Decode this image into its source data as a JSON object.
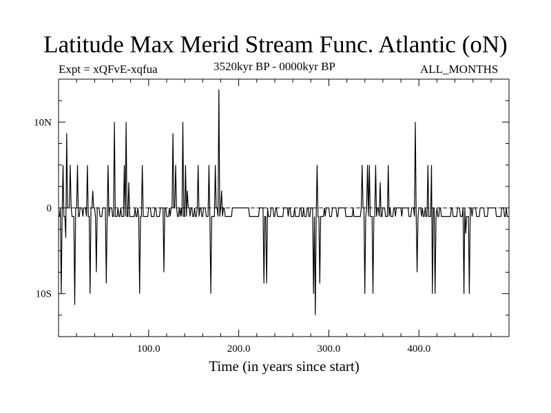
{
  "chart_data": {
    "type": "line",
    "title": "Latitude Max Merid Stream Func. Atlantic (oN)",
    "experiment": "Expt = xQFvE-xqfua",
    "period": "3520kyr BP - 0000kyr BP",
    "season": "ALL_MONTHS",
    "xlabel": "Time (in years since start)",
    "ylabel": "",
    "xlim": [
      0,
      500
    ],
    "ylim": [
      -15,
      15
    ],
    "xticks": [
      100,
      200,
      300,
      400
    ],
    "xtick_labels": [
      "100.0",
      "200.0",
      "300.0",
      "400.0"
    ],
    "yticks": [
      10,
      0,
      -10
    ],
    "ytick_labels": [
      "10N",
      "0",
      "10S"
    ],
    "baseline": 0,
    "spikes": [
      {
        "x": 3,
        "y": -10
      },
      {
        "x": 5,
        "y": 5
      },
      {
        "x": 8,
        "y": -3.5
      },
      {
        "x": 9,
        "y": 8.7
      },
      {
        "x": 13,
        "y": 5
      },
      {
        "x": 18,
        "y": -11.3
      },
      {
        "x": 21,
        "y": 5
      },
      {
        "x": 32,
        "y": 5
      },
      {
        "x": 35,
        "y": -10
      },
      {
        "x": 38,
        "y": 2
      },
      {
        "x": 42,
        "y": -7.5
      },
      {
        "x": 53,
        "y": -8.8
      },
      {
        "x": 55,
        "y": 5
      },
      {
        "x": 62,
        "y": 10
      },
      {
        "x": 73,
        "y": 5
      },
      {
        "x": 75,
        "y": 10
      },
      {
        "x": 78,
        "y": 3
      },
      {
        "x": 90,
        "y": -10
      },
      {
        "x": 93,
        "y": 5
      },
      {
        "x": 117,
        "y": -7.5
      },
      {
        "x": 127,
        "y": 8.7
      },
      {
        "x": 130,
        "y": 5
      },
      {
        "x": 138,
        "y": 10
      },
      {
        "x": 141,
        "y": 5
      },
      {
        "x": 143,
        "y": 2
      },
      {
        "x": 155,
        "y": 5
      },
      {
        "x": 167,
        "y": 5
      },
      {
        "x": 169,
        "y": -10
      },
      {
        "x": 174,
        "y": 5
      },
      {
        "x": 178,
        "y": 13.8
      },
      {
        "x": 181,
        "y": 2
      },
      {
        "x": 228,
        "y": -8.8
      },
      {
        "x": 231,
        "y": -8.8
      },
      {
        "x": 283,
        "y": -10
      },
      {
        "x": 285,
        "y": -12.5
      },
      {
        "x": 287,
        "y": 5
      },
      {
        "x": 290,
        "y": -8.8
      },
      {
        "x": 337,
        "y": 5
      },
      {
        "x": 340,
        "y": -10
      },
      {
        "x": 343,
        "y": 5
      },
      {
        "x": 345,
        "y": 5
      },
      {
        "x": 349,
        "y": -10
      },
      {
        "x": 352,
        "y": 5
      },
      {
        "x": 357,
        "y": 3
      },
      {
        "x": 366,
        "y": 5
      },
      {
        "x": 396,
        "y": 10
      },
      {
        "x": 398,
        "y": -7.5
      },
      {
        "x": 410,
        "y": 5
      },
      {
        "x": 414,
        "y": 5
      },
      {
        "x": 415,
        "y": -10
      },
      {
        "x": 418,
        "y": -10
      },
      {
        "x": 450,
        "y": -10
      },
      {
        "x": 452,
        "y": -3
      },
      {
        "x": 456,
        "y": -10
      }
    ]
  }
}
